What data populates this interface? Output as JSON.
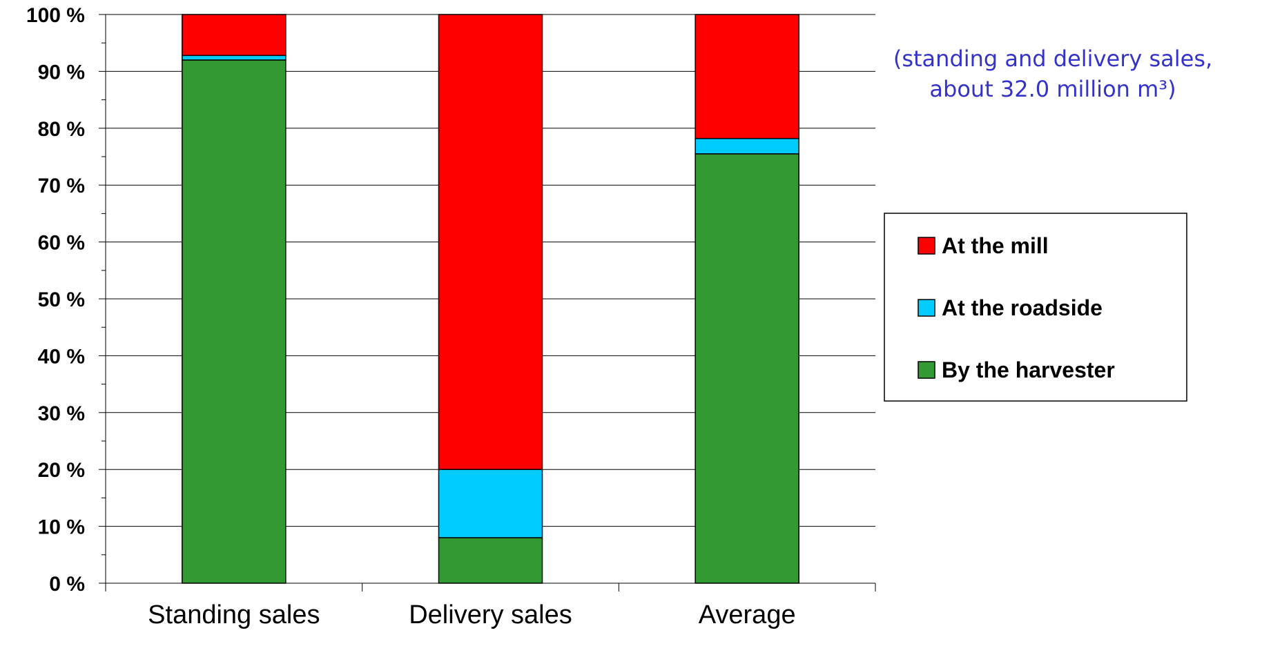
{
  "chart_data": {
    "type": "bar",
    "stacked": true,
    "percent_stacked": true,
    "categories": [
      "Standing sales",
      "Delivery sales",
      "Average"
    ],
    "series": [
      {
        "name": "By the harvester",
        "color": "#339933",
        "values": [
          92,
          8,
          75.5
        ]
      },
      {
        "name": "At the roadside",
        "color": "#00ccff",
        "values": [
          0.8,
          12,
          2.7
        ]
      },
      {
        "name": "At the mill",
        "color": "#ff0000",
        "values": [
          7.2,
          80,
          21.8
        ]
      }
    ],
    "ylim": [
      0,
      100
    ],
    "y_ticks": [
      "0 %",
      "10 %",
      "20 %",
      "30 %",
      "40 %",
      "50 %",
      "60 %",
      "70 %",
      "80 %",
      "90 %",
      "100 %"
    ],
    "grid": true,
    "legend": {
      "placement": "right",
      "entries": [
        "At the mill",
        "At the roadside",
        "By the harvester"
      ]
    },
    "annotation": {
      "lines": [
        "(standing and delivery sales,",
        "about 32.0 million m³)"
      ],
      "color": "#3333cc"
    }
  }
}
